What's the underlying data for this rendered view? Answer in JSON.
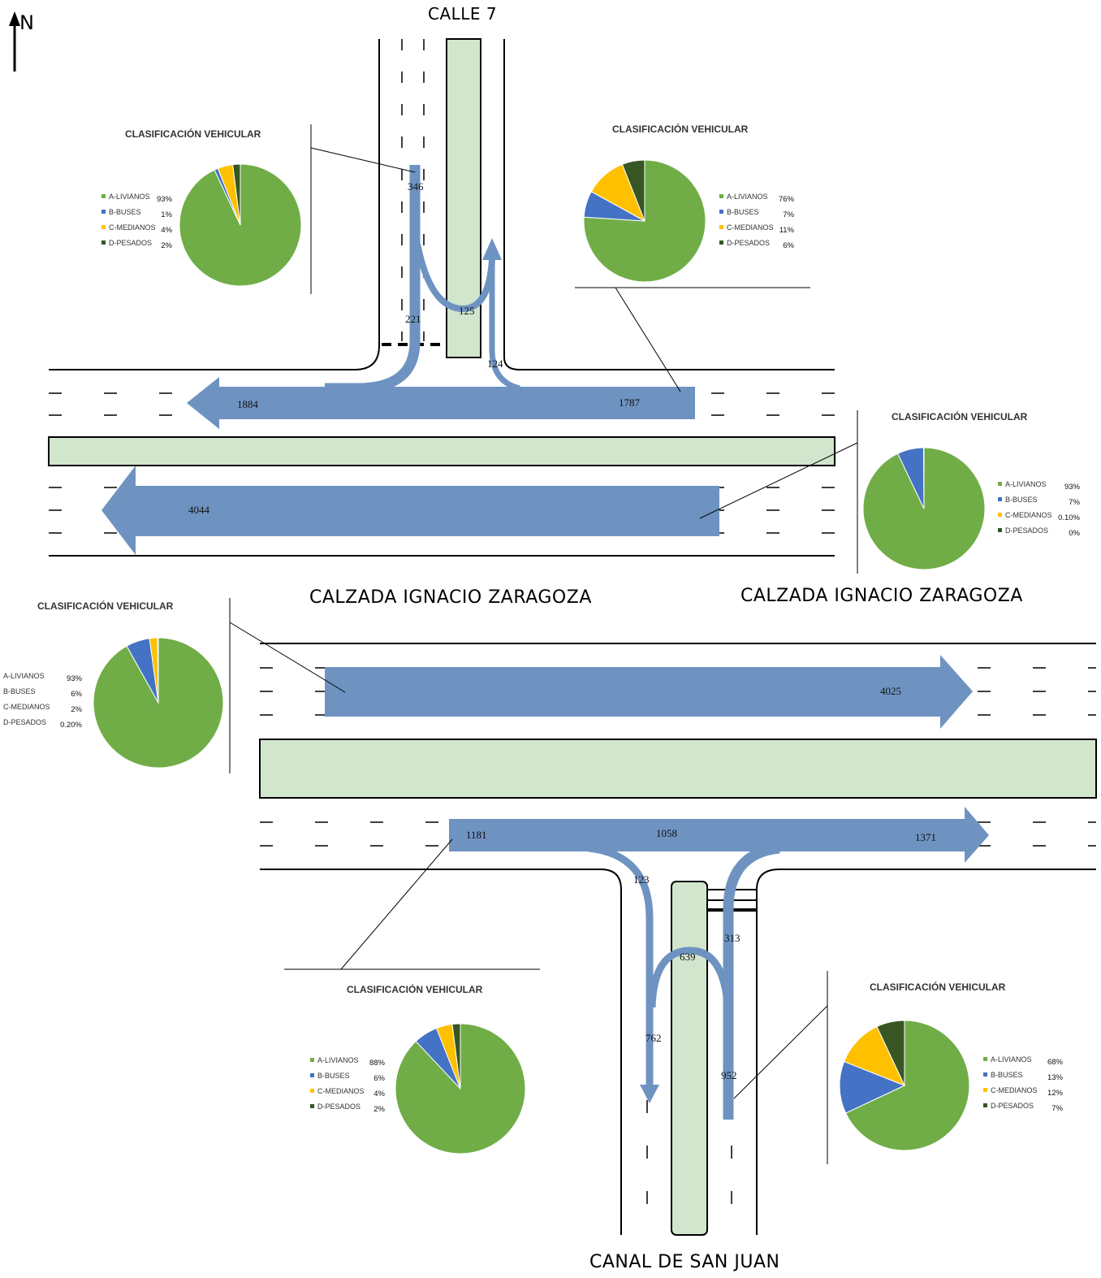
{
  "north_label": "N",
  "streets": {
    "calle7": "CALLE 7",
    "zaragoza_left": "CALZADA IGNACIO ZARAGOZA",
    "zaragoza_right": "CALZADA IGNACIO ZARAGOZA",
    "canal": "CANAL DE SAN JUAN"
  },
  "flows": [
    {
      "id": "n-in",
      "value": "346"
    },
    {
      "id": "n-left",
      "value": "221"
    },
    {
      "id": "n-uturn",
      "value": "125"
    },
    {
      "id": "e-north",
      "value": "124"
    },
    {
      "id": "w-out",
      "value": "1884"
    },
    {
      "id": "e-in",
      "value": "1787"
    },
    {
      "id": "wb-main",
      "value": "4044"
    },
    {
      "id": "eb-main",
      "value": "4025"
    },
    {
      "id": "eb-local-in",
      "value": "1181"
    },
    {
      "id": "eb-local-mid",
      "value": "1058"
    },
    {
      "id": "eb-local-out",
      "value": "1371"
    },
    {
      "id": "s-right",
      "value": "123"
    },
    {
      "id": "s-uturn",
      "value": "639"
    },
    {
      "id": "s-in-right",
      "value": "313"
    },
    {
      "id": "s-out",
      "value": "762"
    },
    {
      "id": "s-in",
      "value": "952"
    }
  ],
  "colors": {
    "livianos": "#70AD47",
    "buses": "#4472C4",
    "medianos": "#FFC000",
    "pesados": "#375623",
    "arrow": "#6E93C1",
    "median": "#D2E6CE"
  },
  "chart_data": [
    {
      "type": "pie",
      "title": "CLASIFICACIÓN VEHICULAR",
      "categories": [
        "A-LIVIANOS",
        "B-BUSES",
        "C-MEDIANOS",
        "D-PESADOS"
      ],
      "values": [
        93,
        1,
        4,
        2
      ],
      "labels": [
        "93%",
        "1%",
        "4%",
        "2%"
      ]
    },
    {
      "type": "pie",
      "title": "CLASIFICACIÓN VEHICULAR",
      "categories": [
        "A-LIVIANOS",
        "B-BUSES",
        "C-MEDIANOS",
        "D-PESADOS"
      ],
      "values": [
        76,
        7,
        11,
        6
      ],
      "labels": [
        "76%",
        "7%",
        "11%",
        "6%"
      ]
    },
    {
      "type": "pie",
      "title": "CLASIFICACIÓN VEHICULAR",
      "categories": [
        "A-LIVIANOS",
        "B-BUSES",
        "C-MEDIANOS",
        "D-PESADOS"
      ],
      "values": [
        93,
        7,
        0.1,
        0
      ],
      "labels": [
        "93%",
        "7%",
        "0.10%",
        "0%"
      ]
    },
    {
      "type": "pie",
      "title": "CLASIFICACIÓN VEHICULAR",
      "categories": [
        "A-LIVIANOS",
        "B-BUSES",
        "C-MEDIANOS",
        "D-PESADOS"
      ],
      "values": [
        93,
        6,
        2,
        0.2
      ],
      "labels": [
        "93%",
        "6%",
        "2%",
        "0.20%"
      ]
    },
    {
      "type": "pie",
      "title": "CLASIFICACIÓN VEHICULAR",
      "categories": [
        "A-LIVIANOS",
        "B-BUSES",
        "C-MEDIANOS",
        "D-PESADOS"
      ],
      "values": [
        88,
        6,
        4,
        2
      ],
      "labels": [
        "88%",
        "6%",
        "4%",
        "2%"
      ]
    },
    {
      "type": "pie",
      "title": "CLASIFICACIÓN VEHICULAR",
      "categories": [
        "A-LIVIANOS",
        "B-BUSES",
        "C-MEDIANOS",
        "D-PESADOS"
      ],
      "values": [
        68,
        13,
        12,
        7
      ],
      "labels": [
        "68%",
        "13%",
        "12%",
        "7%"
      ]
    }
  ]
}
